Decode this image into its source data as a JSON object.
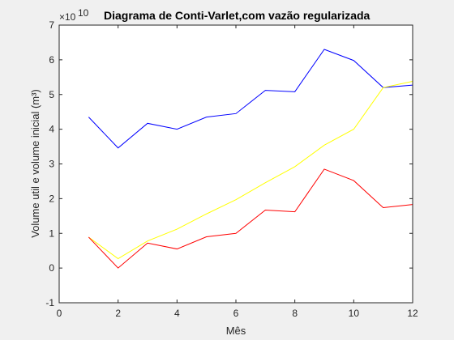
{
  "chart_data": {
    "type": "line",
    "title": "Diagrama de Conti-Varlet,com vazão regularizada",
    "xlabel": "Mês",
    "ylabel": "Volume util e volume inicial (m³)",
    "exponent_prefix": "×10",
    "exponent_power": "10",
    "scale_factor": 10000000000,
    "xlim": [
      0,
      12
    ],
    "ylim": [
      -1,
      7
    ],
    "xticks": [
      "0",
      "2",
      "4",
      "6",
      "8",
      "10",
      "12"
    ],
    "yticks": [
      "-1",
      "0",
      "1",
      "2",
      "3",
      "4",
      "5",
      "6",
      "7"
    ],
    "grid": false,
    "legend": "none",
    "x": [
      1,
      2,
      3,
      4,
      5,
      6,
      7,
      8,
      9,
      10,
      11,
      12
    ],
    "series": [
      {
        "color": "#0000ff",
        "values": [
          4.35,
          3.46,
          4.17,
          4.0,
          4.35,
          4.45,
          5.12,
          5.08,
          6.3,
          5.98,
          5.2,
          5.27
        ]
      },
      {
        "color": "#ffff00",
        "values": [
          0.89,
          0.27,
          0.78,
          1.12,
          1.56,
          1.97,
          2.46,
          2.92,
          3.54,
          4.0,
          5.2,
          5.38
        ]
      },
      {
        "color": "#ff0000",
        "values": [
          0.89,
          0.0,
          0.72,
          0.55,
          0.9,
          1.0,
          1.67,
          1.62,
          2.85,
          2.52,
          1.74,
          1.83
        ]
      }
    ]
  }
}
